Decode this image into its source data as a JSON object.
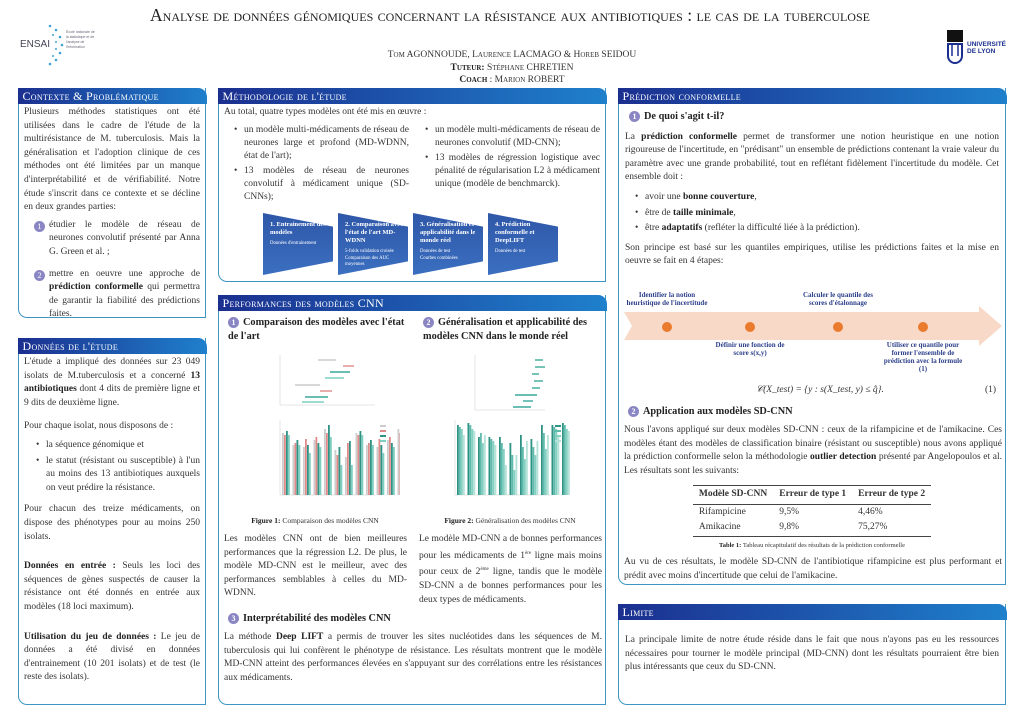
{
  "header": {
    "title": "Analyse de données génomiques concernant la résistance aux antibiotiques : le cas de la tuberculose",
    "authors": "Tom AGONNOUDE, Laurence LACMAGO & Horeb SEIDOU",
    "tutor_label": "Tuteur",
    "tutor": "Stéphane CHRETIEN",
    "coach_label": "Coach",
    "coach": "Marion ROBERT",
    "logo_left": "ENSAI",
    "logo_left_sub": "École nationale de la statistique et de l'analyse de l'information",
    "logo_right": "UNIVERSITÉ DE LYON"
  },
  "contexte": {
    "title": "Contexte & Problématique",
    "text": "Plusieurs méthodes statistiques ont été utilisées dans le cadre de l'étude de la multirésistance de M. tuberculosis. Mais la généralisation et l'adoption clinique de ces méthodes ont été limitées par un manque d'interprétabilité et de vérifiabilité. Notre étude s'inscrit dans ce contexte et se décline en deux grandes parties:",
    "items": [
      {
        "num": "1",
        "text": "étudier le modèle de réseau de neurones convolutif présenté par Anna G. Green et al. ;"
      },
      {
        "num": "2",
        "pre": "mettre en oeuvre une approche de ",
        "bold": "prédiction conformelle",
        "post": " qui permettra de garantir la fiabilité des prédictions faites."
      }
    ]
  },
  "donnees": {
    "title": "Données de l'étude",
    "p1_pre": "L'étude a impliqué des données sur 23 049 isolats de M.tuberculosis et a concerné ",
    "p1_bold": "13 antibiotiques",
    "p1_post": " dont 4 dits de première ligne et 9 dits de deuxième ligne.",
    "p2": "Pour chaque isolat, nous disposons de :",
    "bullets": [
      "la séquence génomique et",
      "le statut (résistant ou susceptible) à l'un au moins des 13 antibiotiques auxquels on veut prédire la résistance."
    ],
    "p3": "Pour chacun des treize médicaments, on dispose des phénotypes pour au moins 250 isolats.",
    "p4_bold": "Données en entrée :",
    "p4": " Seuls les loci des séquences de gènes suspectés de causer la résistance ont été donnés en entrée aux modèles (18 loci maximum).",
    "p5_bold": "Utilisation du jeu de données :",
    "p5": " Le jeu de données a été divisé en données d'entrainement (10 201 isolats) et de test (le reste des isolats)."
  },
  "methodo": {
    "title": "Méthodologie de l'étude",
    "intro": "Au total, quatre types modèles ont été mis en œuvre :",
    "left": [
      "un modèle multi-médicaments de réseau de neurones large et profond (MD-WDNN, état de l'art);",
      "13 modèles de réseau de neurones convolutif à médicament unique (SD-CNNs);"
    ],
    "right": [
      "un modèle multi-médicaments de réseau de neurones convolutif (MD-CNN);",
      "13 modèles de régression logistique avec pénalité de régularisation L2 à médicament unique (modèle de benchmarck)."
    ],
    "steps": [
      {
        "title": "1. Entrainement des modèles",
        "subs": [
          "Données d'entrainement"
        ]
      },
      {
        "title": "2. Comparaison avec l'état de l'art MD-WDNN",
        "subs": [
          "5-folds validation croisée",
          "Comparaison des AUC moyennes"
        ]
      },
      {
        "title": "3. Généralisation et applicabilité dans le monde réel",
        "subs": [
          "Données de test",
          "Courbes combinées"
        ]
      },
      {
        "title": "4. Prédiction conformelle et DeepLIFT",
        "subs": [
          "Données de test"
        ]
      }
    ]
  },
  "perf": {
    "title": "Performances des modèles CNN",
    "s1_num": "1",
    "s1_title": "Comparaison des modèles avec l'état de l'art",
    "s2_num": "2",
    "s2_title": "Généralisation et applicabilité des modèles CNN dans le monde réel",
    "fig1_label": "Figure 1:",
    "fig1_caption": "Comparaison des modèles CNN",
    "fig2_label": "Figure 2:",
    "fig2_caption": "Généralisation des modèles CNN",
    "s1_text": "Les modèles CNN ont de bien meilleures performances que la régression L2. De plus, le modèle MD-CNN est le meilleur, avec des performances semblables à celles du MD-WDNN.",
    "s2_text_a": "Le modèle MD-CNN a de bonnes performances pour les médicaments de 1",
    "s2_sup1": "ère",
    "s2_text_b": " ligne mais moins pour ceux de 2",
    "s2_sup2": "ème",
    "s2_text_c": " ligne, tandis que le modèle SD-CNN a de bonnes performances pour les deux types de médicaments.",
    "s3_num": "3",
    "s3_title": "Interprétabilité des modèles CNN",
    "s3_pre": "La méthode ",
    "s3_bold": "Deep LIFT",
    "s3_post": " a permis de trouver les sites nucléotides dans les séquences de M. tuberculosis qui lui confèrent le phénotype de résistance. Les résultats montrent que le modèle MD-CNN atteint des performances élevées en s'appuyant sur des corrélations entre les résistances aux médicaments."
  },
  "conforme": {
    "title": "Prédiction conformelle",
    "s1_num": "1",
    "s1_title": "De quoi s'agit t-il?",
    "p1_pre": "La ",
    "p1_bold": "prédiction conformelle",
    "p1_post": " permet de transformer une notion heuristique en une notion rigoureuse de l'incertitude, en \"prédisant\" un ensemble de prédictions contenant la vraie valeur du paramètre avec une grande probabilité, tout en reflétant fidèlement l'incertitude du modèle. Cet ensemble doit :",
    "bullets": [
      {
        "pre": "avoir une ",
        "bold": "bonne couverture",
        "post": ","
      },
      {
        "pre": "être de ",
        "bold": "taille minimale",
        "post": ","
      },
      {
        "pre": "être ",
        "bold": "adaptatifs",
        "post": " (refléter la difficulté liée à la prédiction)."
      }
    ],
    "p2": "Son principe est basé sur les quantiles empiriques, utilise les prédictions faites et la mise en oeuvre se fait en 4 étapes:",
    "steps": [
      "Identifier la notion heuristique de l'incertitude",
      "Définir une fonction de score s(x,y)",
      "Calculer le quantile des scores d'étalonnage",
      "Utiliser ce quantile pour former l'ensemble de prédiction avec la formule (1)"
    ],
    "formula": "𝒞(X_test) = {y : s(X_test, y) ≤ q̂}.",
    "formula_num": "(1)",
    "s2_num": "2",
    "s2_title": "Application aux modèles SD-CNN",
    "p3_pre": "Nous l'avons appliqué sur deux modèles SD-CNN : ceux de la rifampicine et de l'amikacine. Ces modèles étant des modèles de classification binaire (résistant ou susceptible) nous avons appliqué la prédiction conformelle selon la méthodologie ",
    "p3_bold": "outlier detection",
    "p3_post": " présenté par Angelopoulos et al. Les résultats sont les suivants:",
    "table": {
      "headers": [
        "Modèle SD-CNN",
        "Erreur de type 1",
        "Erreur de type 2"
      ],
      "rows": [
        [
          "Rifampicine",
          "9,5%",
          "4,46%"
        ],
        [
          "Amikacine",
          "9,8%",
          "75,27%"
        ]
      ],
      "caption_label": "Table 1:",
      "caption": "Tableau récapitulatif des résultats de la prédiction conformelle"
    },
    "p4": "Au vu de ces résultats, le modèle SD-CNN de l'antibiotique rifampicine est plus performant et prédit avec moins d'incertitude que celui de l'amikacine."
  },
  "limite": {
    "title": "Limite",
    "text": "La principale limite de notre étude réside dans le fait que nous n'ayons pas eu les ressources nécessaires pour tourner le modèle principal (MD-CNN) dont les résultats pourraient être bien plus intéressants que ceux du SD-CNN."
  },
  "colors": {
    "header_dark": "#1b2f8f",
    "header_light": "#1f80cc",
    "border": "#3d95c4",
    "number_badge": "#8a86c4",
    "arrow": "#f8d9c8",
    "dot": "#ea7a2c",
    "bar_teal": "#3aa99a"
  }
}
